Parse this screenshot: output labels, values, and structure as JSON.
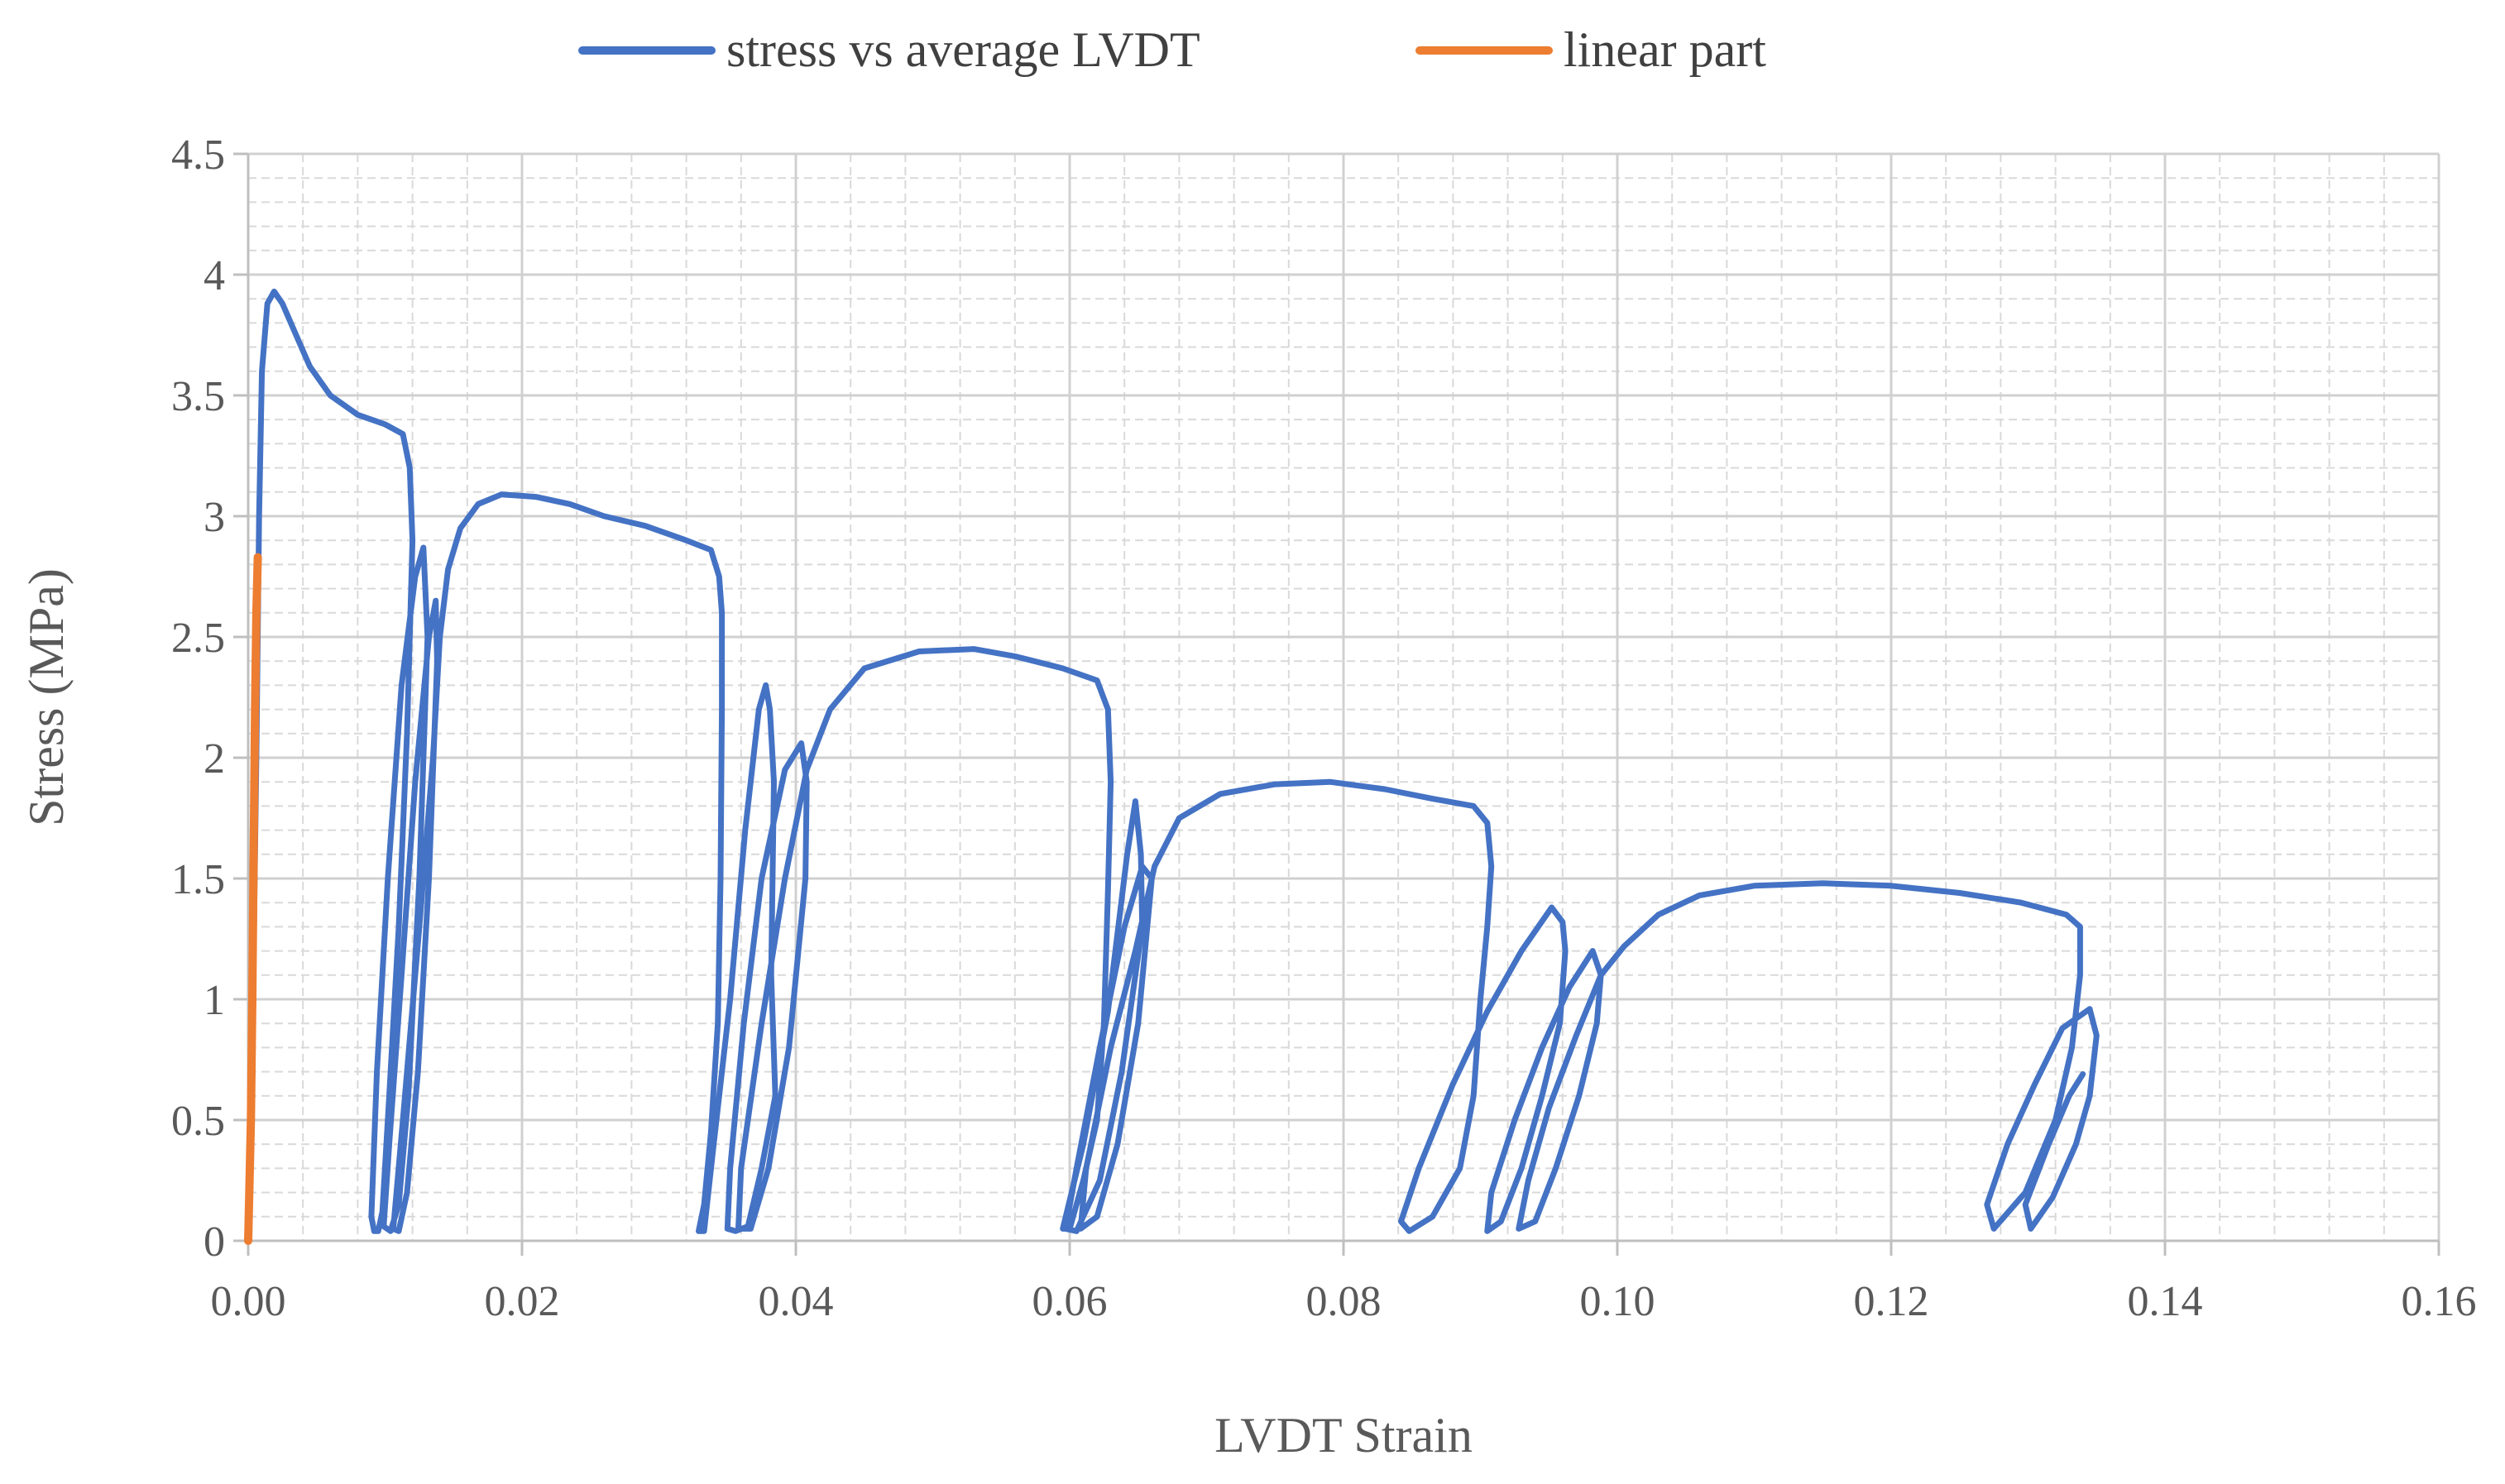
{
  "chart_data": {
    "type": "line",
    "title": "",
    "xlabel": "LVDT Strain",
    "ylabel": "Stress  (MPa)",
    "xlim": [
      0,
      0.16
    ],
    "ylim": [
      0,
      4.5
    ],
    "x_ticks": [
      0,
      0.02,
      0.04,
      0.06,
      0.08,
      0.1,
      0.12,
      0.14,
      0.16
    ],
    "x_tick_labels": [
      "0.00",
      "0.02",
      "0.04",
      "0.06",
      "0.08",
      "0.10",
      "0.12",
      "0.14",
      "0.16"
    ],
    "y_ticks": [
      0,
      0.5,
      1,
      1.5,
      2,
      2.5,
      3,
      3.5,
      4,
      4.5
    ],
    "y_tick_labels": [
      "0",
      "0.5",
      "1",
      "1.5",
      "2",
      "2.5",
      "3",
      "3.5",
      "4",
      "4.5"
    ],
    "x_minor_step": 0.02,
    "y_minor_step": 0.1,
    "grid": true,
    "legend_position": "top",
    "series": [
      {
        "name": "stress vs average LVDT",
        "color": "#4472C4",
        "points": [
          [
            0,
            0
          ],
          [
            0.0003,
            0.8
          ],
          [
            0.0006,
            2.0
          ],
          [
            0.0008,
            3.0
          ],
          [
            0.001,
            3.6
          ],
          [
            0.0014,
            3.88
          ],
          [
            0.0019,
            3.93
          ],
          [
            0.0025,
            3.88
          ],
          [
            0.0035,
            3.75
          ],
          [
            0.0045,
            3.62
          ],
          [
            0.006,
            3.5
          ],
          [
            0.008,
            3.42
          ],
          [
            0.01,
            3.38
          ],
          [
            0.0113,
            3.34
          ],
          [
            0.0118,
            3.2
          ],
          [
            0.012,
            2.9
          ],
          [
            0.0116,
            2.1
          ],
          [
            0.011,
            1.3
          ],
          [
            0.0103,
            0.6
          ],
          [
            0.0098,
            0.12
          ],
          [
            0.0095,
            0.04
          ],
          [
            0.0092,
            0.04
          ],
          [
            0.009,
            0.1
          ],
          [
            0.0094,
            0.7
          ],
          [
            0.0102,
            1.5
          ],
          [
            0.0112,
            2.3
          ],
          [
            0.0122,
            2.75
          ],
          [
            0.0128,
            2.87
          ],
          [
            0.0131,
            2.5
          ],
          [
            0.0125,
            1.5
          ],
          [
            0.0117,
            0.6
          ],
          [
            0.011,
            0.15
          ],
          [
            0.0104,
            0.04
          ],
          [
            0.0099,
            0.06
          ],
          [
            0.0103,
            0.4
          ],
          [
            0.0112,
            1.1
          ],
          [
            0.0122,
            1.9
          ],
          [
            0.0132,
            2.5
          ],
          [
            0.0137,
            2.65
          ],
          [
            0.0138,
            2.4
          ],
          [
            0.0132,
            1.5
          ],
          [
            0.0124,
            0.7
          ],
          [
            0.0116,
            0.2
          ],
          [
            0.011,
            0.04
          ],
          [
            0.0106,
            0.05
          ],
          [
            0.0113,
            0.5
          ],
          [
            0.0125,
            1.3
          ],
          [
            0.0135,
            2.0
          ],
          [
            0.014,
            2.5
          ],
          [
            0.0146,
            2.78
          ],
          [
            0.0155,
            2.95
          ],
          [
            0.0168,
            3.05
          ],
          [
            0.0185,
            3.09
          ],
          [
            0.021,
            3.08
          ],
          [
            0.0235,
            3.05
          ],
          [
            0.026,
            3.0
          ],
          [
            0.029,
            2.96
          ],
          [
            0.032,
            2.9
          ],
          [
            0.0338,
            2.86
          ],
          [
            0.0344,
            2.75
          ],
          [
            0.0346,
            2.6
          ],
          [
            0.0346,
            2.2
          ],
          [
            0.0345,
            1.5
          ],
          [
            0.0343,
            0.9
          ],
          [
            0.0338,
            0.45
          ],
          [
            0.0333,
            0.15
          ],
          [
            0.0329,
            0.04
          ],
          [
            0.0333,
            0.04
          ],
          [
            0.034,
            0.4
          ],
          [
            0.0352,
            1.0
          ],
          [
            0.0363,
            1.7
          ],
          [
            0.0373,
            2.2
          ],
          [
            0.0378,
            2.3
          ],
          [
            0.0381,
            2.2
          ],
          [
            0.0384,
            1.9
          ],
          [
            0.0382,
            1.1
          ],
          [
            0.0385,
            0.6
          ],
          [
            0.0375,
            0.3
          ],
          [
            0.0365,
            0.06
          ],
          [
            0.0356,
            0.04
          ],
          [
            0.035,
            0.05
          ],
          [
            0.0352,
            0.3
          ],
          [
            0.0362,
            0.9
          ],
          [
            0.0375,
            1.5
          ],
          [
            0.0392,
            1.95
          ],
          [
            0.0404,
            2.06
          ],
          [
            0.0408,
            1.9
          ],
          [
            0.0407,
            1.5
          ],
          [
            0.0395,
            0.8
          ],
          [
            0.038,
            0.3
          ],
          [
            0.0367,
            0.05
          ],
          [
            0.0358,
            0.05
          ],
          [
            0.036,
            0.3
          ],
          [
            0.0375,
            0.9
          ],
          [
            0.0392,
            1.5
          ],
          [
            0.0408,
            1.95
          ],
          [
            0.0425,
            2.2
          ],
          [
            0.045,
            2.37
          ],
          [
            0.049,
            2.44
          ],
          [
            0.053,
            2.45
          ],
          [
            0.056,
            2.42
          ],
          [
            0.0595,
            2.37
          ],
          [
            0.062,
            2.32
          ],
          [
            0.0628,
            2.2
          ],
          [
            0.063,
            1.9
          ],
          [
            0.0628,
            1.45
          ],
          [
            0.0625,
            0.9
          ],
          [
            0.062,
            0.5
          ],
          [
            0.061,
            0.25
          ],
          [
            0.06,
            0.05
          ],
          [
            0.0595,
            0.05
          ],
          [
            0.061,
            0.4
          ],
          [
            0.0628,
            0.95
          ],
          [
            0.0642,
            1.6
          ],
          [
            0.0648,
            1.82
          ],
          [
            0.0652,
            1.6
          ],
          [
            0.0653,
            1.3
          ],
          [
            0.0638,
            0.7
          ],
          [
            0.0622,
            0.25
          ],
          [
            0.0605,
            0.04
          ],
          [
            0.0597,
            0.05
          ],
          [
            0.0605,
            0.3
          ],
          [
            0.0622,
            0.8
          ],
          [
            0.064,
            1.3
          ],
          [
            0.0653,
            1.55
          ],
          [
            0.066,
            1.5
          ],
          [
            0.065,
            0.9
          ],
          [
            0.0635,
            0.4
          ],
          [
            0.062,
            0.1
          ],
          [
            0.0608,
            0.05
          ],
          [
            0.0612,
            0.3
          ],
          [
            0.063,
            0.8
          ],
          [
            0.0648,
            1.2
          ],
          [
            0.0662,
            1.55
          ],
          [
            0.068,
            1.75
          ],
          [
            0.071,
            1.85
          ],
          [
            0.075,
            1.89
          ],
          [
            0.079,
            1.9
          ],
          [
            0.083,
            1.87
          ],
          [
            0.0865,
            1.83
          ],
          [
            0.0895,
            1.8
          ],
          [
            0.0905,
            1.73
          ],
          [
            0.0908,
            1.55
          ],
          [
            0.0905,
            1.3
          ],
          [
            0.09,
            1.0
          ],
          [
            0.0895,
            0.6
          ],
          [
            0.0885,
            0.3
          ],
          [
            0.0865,
            0.1
          ],
          [
            0.0848,
            0.04
          ],
          [
            0.0842,
            0.08
          ],
          [
            0.0855,
            0.3
          ],
          [
            0.088,
            0.65
          ],
          [
            0.0905,
            0.95
          ],
          [
            0.093,
            1.2
          ],
          [
            0.0952,
            1.38
          ],
          [
            0.096,
            1.32
          ],
          [
            0.0962,
            1.2
          ],
          [
            0.0958,
            0.9
          ],
          [
            0.0945,
            0.6
          ],
          [
            0.093,
            0.3
          ],
          [
            0.0915,
            0.08
          ],
          [
            0.0905,
            0.04
          ],
          [
            0.0908,
            0.2
          ],
          [
            0.0925,
            0.5
          ],
          [
            0.0945,
            0.8
          ],
          [
            0.0965,
            1.05
          ],
          [
            0.0982,
            1.2
          ],
          [
            0.0988,
            1.1
          ],
          [
            0.0985,
            0.9
          ],
          [
            0.0972,
            0.6
          ],
          [
            0.0955,
            0.3
          ],
          [
            0.094,
            0.08
          ],
          [
            0.0928,
            0.05
          ],
          [
            0.0935,
            0.25
          ],
          [
            0.095,
            0.55
          ],
          [
            0.097,
            0.85
          ],
          [
            0.0988,
            1.1
          ],
          [
            0.1005,
            1.22
          ],
          [
            0.103,
            1.35
          ],
          [
            0.106,
            1.43
          ],
          [
            0.11,
            1.47
          ],
          [
            0.115,
            1.48
          ],
          [
            0.12,
            1.47
          ],
          [
            0.125,
            1.44
          ],
          [
            0.1295,
            1.4
          ],
          [
            0.1328,
            1.35
          ],
          [
            0.1338,
            1.3
          ],
          [
            0.1338,
            1.1
          ],
          [
            0.1332,
            0.8
          ],
          [
            0.132,
            0.5
          ],
          [
            0.1298,
            0.2
          ],
          [
            0.1275,
            0.05
          ],
          [
            0.127,
            0.15
          ],
          [
            0.1285,
            0.4
          ],
          [
            0.1305,
            0.65
          ],
          [
            0.1325,
            0.88
          ],
          [
            0.1345,
            0.96
          ],
          [
            0.135,
            0.85
          ],
          [
            0.1345,
            0.6
          ],
          [
            0.1335,
            0.4
          ],
          [
            0.1318,
            0.18
          ],
          [
            0.1302,
            0.05
          ],
          [
            0.1298,
            0.15
          ],
          [
            0.1315,
            0.4
          ],
          [
            0.133,
            0.6
          ],
          [
            0.134,
            0.69
          ]
        ]
      },
      {
        "name": "linear part",
        "color": "#ED7D31",
        "points": [
          [
            0,
            0
          ],
          [
            0.0002,
            0.5
          ],
          [
            0.0003,
            1.0
          ],
          [
            0.0004,
            1.6
          ],
          [
            0.0005,
            2.2
          ],
          [
            0.0006,
            2.6
          ],
          [
            0.0007,
            2.83
          ]
        ]
      }
    ]
  }
}
